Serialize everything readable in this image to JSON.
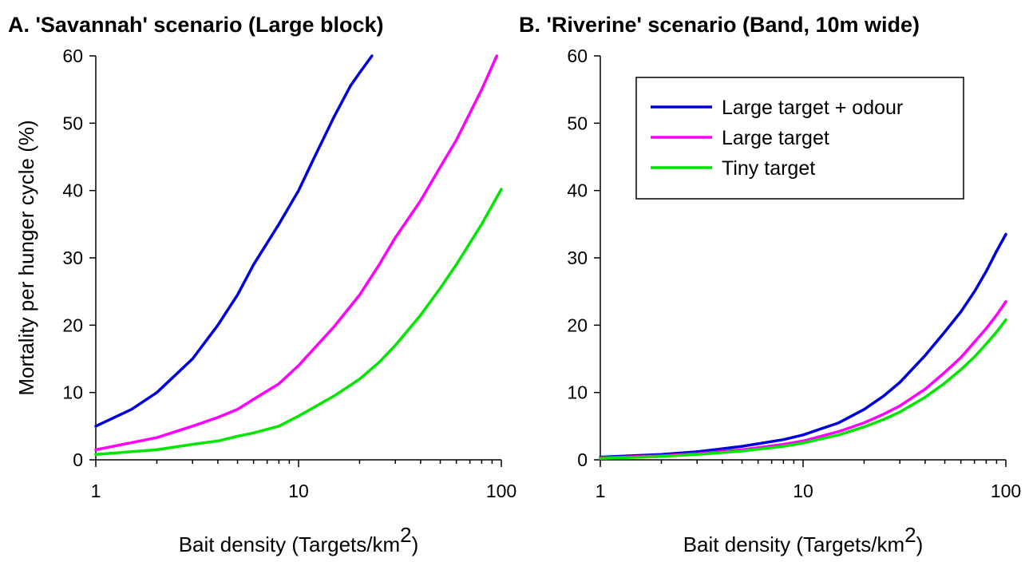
{
  "colors": {
    "large_target_odour": "#0000dd",
    "large_target": "#ff00ff",
    "tiny_target": "#00e600"
  },
  "chart_data": [
    {
      "type": "line",
      "title": "A. 'Savannah' scenario (Large block)",
      "xlabel": "Bait density (Targets/km",
      "xlabel_sup": "2",
      "xlabel_close": ")",
      "ylabel": "Mortality per hunger cycle (%)",
      "xscale": "log",
      "xlim": [
        1,
        100
      ],
      "ylim": [
        0,
        60
      ],
      "xticks": [
        1,
        10,
        100
      ],
      "xtick_labels": [
        "1",
        "10",
        "100"
      ],
      "yticks": [
        0,
        10,
        20,
        30,
        40,
        50,
        60
      ],
      "ytick_labels": [
        "0",
        "10",
        "20",
        "30",
        "40",
        "50",
        "60"
      ],
      "grid": false,
      "legend": null,
      "series": [
        {
          "color_key": "large_target_odour",
          "x": [
            1,
            1.5,
            2,
            3,
            4,
            5,
            6,
            8,
            10,
            12,
            15,
            18,
            20,
            23
          ],
          "y": [
            5,
            7.5,
            10,
            15,
            20,
            24.5,
            29,
            35,
            40,
            45,
            51,
            55.5,
            57.5,
            60
          ]
        },
        {
          "color_key": "large_target",
          "x": [
            1,
            2,
            3,
            4,
            5,
            6,
            8,
            10,
            15,
            20,
            25,
            30,
            40,
            50,
            60,
            80,
            95
          ],
          "y": [
            1.5,
            3.3,
            5,
            6.3,
            7.5,
            9,
            11.3,
            14,
            19.8,
            24.5,
            29,
            33,
            38.5,
            43.5,
            47.5,
            55,
            60
          ]
        },
        {
          "color_key": "tiny_target",
          "x": [
            1,
            2,
            3,
            4,
            5,
            6,
            8,
            10,
            15,
            20,
            25,
            30,
            40,
            50,
            60,
            80,
            100
          ],
          "y": [
            0.8,
            1.5,
            2.3,
            2.8,
            3.5,
            4,
            5,
            6.5,
            9.5,
            12,
            14.5,
            17,
            21.5,
            25.5,
            29,
            35,
            40.2
          ]
        }
      ]
    },
    {
      "type": "line",
      "title": "B. 'Riverine' scenario (Band, 10m wide)",
      "xlabel": "Bait density (Targets/km",
      "xlabel_sup": "2",
      "xlabel_close": ")",
      "ylabel": "",
      "xscale": "log",
      "xlim": [
        1,
        100
      ],
      "ylim": [
        0,
        60
      ],
      "xticks": [
        1,
        10,
        100
      ],
      "xtick_labels": [
        "1",
        "10",
        "100"
      ],
      "yticks": [
        0,
        10,
        20,
        30,
        40,
        50,
        60
      ],
      "ytick_labels": [
        "0",
        "10",
        "20",
        "30",
        "40",
        "50",
        "60"
      ],
      "grid": false,
      "legend": {
        "placement": "top-right",
        "entries": [
          {
            "label": "Large target + odour",
            "color_key": "large_target_odour"
          },
          {
            "label": "Large target",
            "color_key": "large_target"
          },
          {
            "label": "Tiny target",
            "color_key": "tiny_target"
          }
        ]
      },
      "series": [
        {
          "color_key": "large_target_odour",
          "x": [
            1,
            2,
            3,
            5,
            8,
            10,
            15,
            20,
            25,
            30,
            40,
            50,
            60,
            70,
            80,
            90,
            100
          ],
          "y": [
            0.4,
            0.8,
            1.2,
            2,
            3,
            3.7,
            5.5,
            7.5,
            9.5,
            11.5,
            15.5,
            19,
            22,
            25,
            28,
            31,
            33.5
          ]
        },
        {
          "color_key": "large_target",
          "x": [
            1,
            2,
            3,
            5,
            8,
            10,
            15,
            20,
            25,
            30,
            40,
            50,
            60,
            70,
            80,
            90,
            100
          ],
          "y": [
            0.3,
            0.6,
            0.9,
            1.5,
            2.3,
            2.8,
            4.2,
            5.5,
            6.8,
            8,
            10.5,
            13,
            15.2,
            17.5,
            19.5,
            21.5,
            23.5
          ]
        },
        {
          "color_key": "tiny_target",
          "x": [
            1,
            2,
            3,
            5,
            8,
            10,
            15,
            20,
            25,
            30,
            40,
            50,
            60,
            70,
            80,
            90,
            100
          ],
          "y": [
            0.2,
            0.5,
            0.8,
            1.3,
            2,
            2.5,
            3.7,
            4.9,
            6,
            7.1,
            9.3,
            11.4,
            13.4,
            15.3,
            17.2,
            19,
            20.8
          ]
        }
      ]
    }
  ]
}
